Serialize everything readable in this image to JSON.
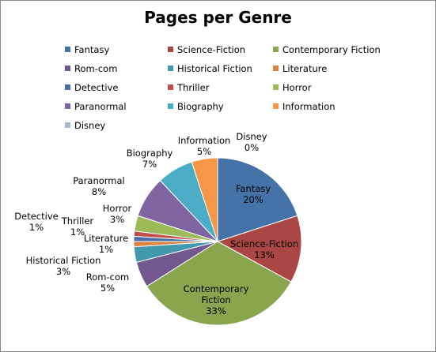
{
  "chart_data": {
    "type": "pie",
    "title": "Pages per Genre",
    "legend_placement": "top",
    "slices": [
      {
        "name": "Fantasy",
        "value": 20,
        "label": "20%",
        "color": "#4572a7"
      },
      {
        "name": "Science-Fiction",
        "value": 13,
        "label": "13%",
        "color": "#aa4643"
      },
      {
        "name": "Contemporary Fiction",
        "value": 33,
        "label": "33%",
        "color": "#89a54e"
      },
      {
        "name": "Rom-com",
        "value": 5,
        "label": "5%",
        "color": "#71588f"
      },
      {
        "name": "Historical Fiction",
        "value": 3,
        "label": "3%",
        "color": "#4198af"
      },
      {
        "name": "Literature",
        "value": 1,
        "label": "1%",
        "color": "#db843d"
      },
      {
        "name": "Detective",
        "value": 1,
        "label": "1%",
        "color": "#4a6fa8"
      },
      {
        "name": "Thriller",
        "value": 1,
        "label": "1%",
        "color": "#c0504d"
      },
      {
        "name": "Horror",
        "value": 3,
        "label": "3%",
        "color": "#9bbb59"
      },
      {
        "name": "Paranormal",
        "value": 8,
        "label": "8%",
        "color": "#8064a2"
      },
      {
        "name": "Biography",
        "value": 7,
        "label": "7%",
        "color": "#4bacc6"
      },
      {
        "name": "Information",
        "value": 5,
        "label": "5%",
        "color": "#f79646"
      },
      {
        "name": "Disney",
        "value": 0,
        "label": "0%",
        "color": "#a5b8d8"
      }
    ]
  }
}
